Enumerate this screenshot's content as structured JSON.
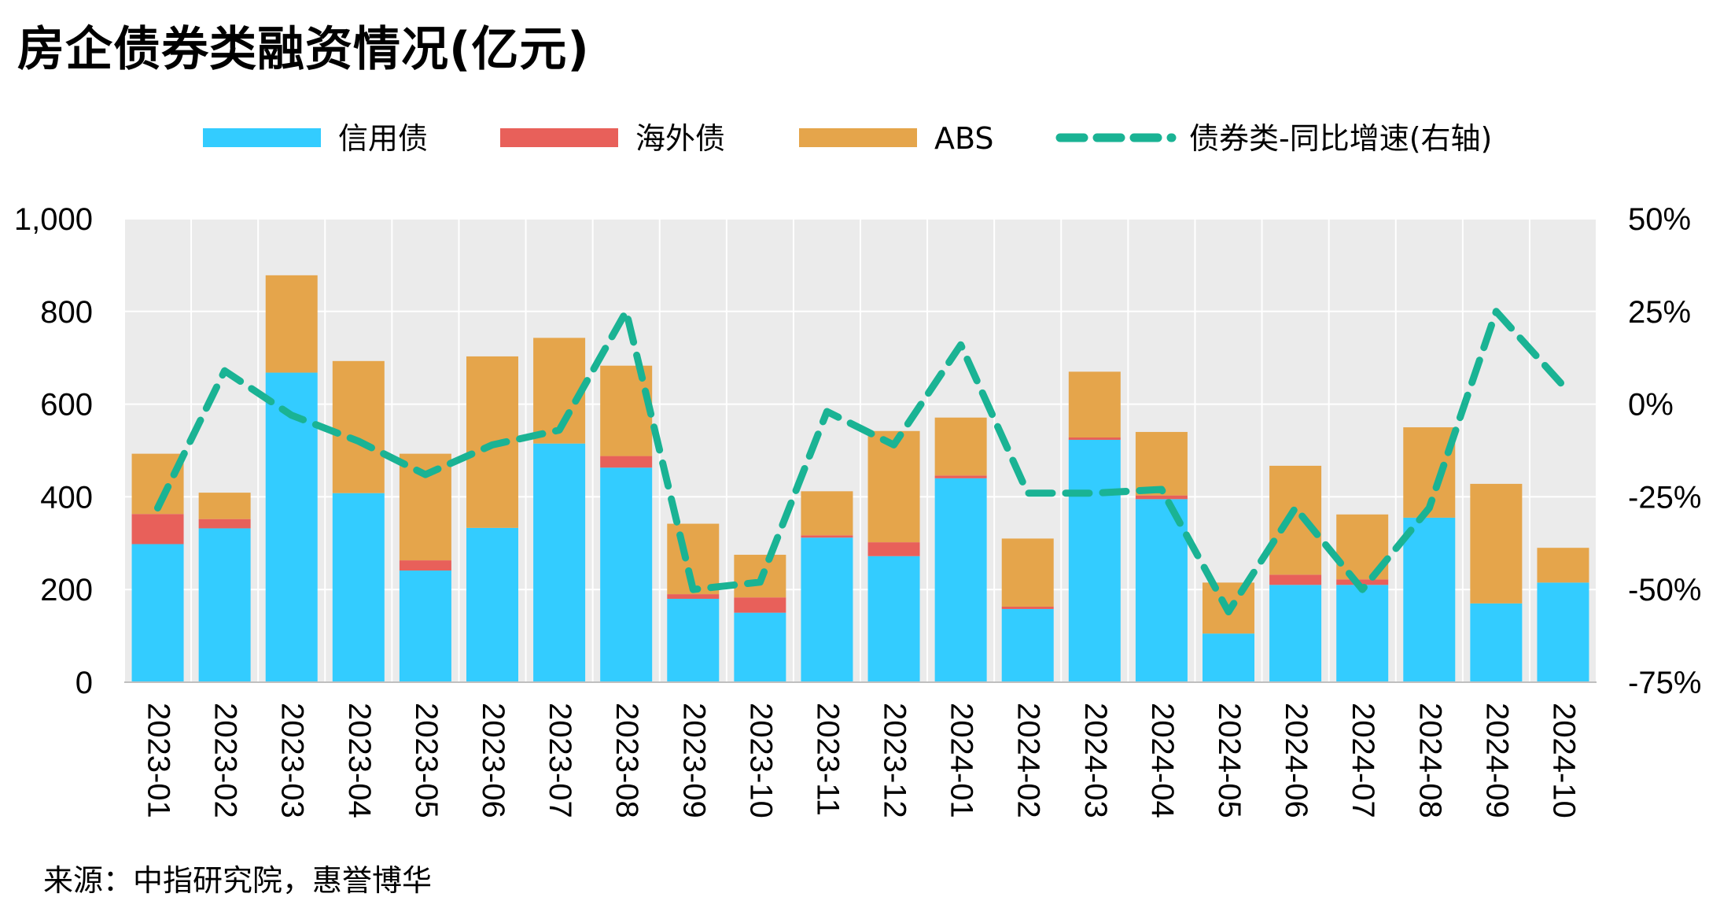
{
  "chart_data": {
    "type": "bar",
    "stacked": true,
    "title": "房企债券类融资情况(亿元)",
    "source": "来源：中指研究院，惠誉博华",
    "categories": [
      "2023-01",
      "2023-02",
      "2023-03",
      "2023-04",
      "2023-05",
      "2023-06",
      "2023-07",
      "2023-08",
      "2023-09",
      "2023-10",
      "2023-11",
      "2023-12",
      "2024-01",
      "2024-02",
      "2024-03",
      "2024-04",
      "2024-05",
      "2024-06",
      "2024-07",
      "2024-08",
      "2024-09",
      "2024-10"
    ],
    "series": [
      {
        "name": "信用债",
        "type": "bar",
        "axis": "left",
        "color": "#33CCFF",
        "values": [
          298,
          332,
          668,
          408,
          241,
          333,
          515,
          463,
          180,
          150,
          312,
          272,
          440,
          158,
          523,
          395,
          105,
          210,
          210,
          355,
          170,
          215
        ]
      },
      {
        "name": "海外债",
        "type": "bar",
        "axis": "left",
        "color": "#E8605A",
        "values": [
          65,
          20,
          0,
          0,
          22,
          0,
          0,
          25,
          10,
          33,
          5,
          30,
          6,
          5,
          5,
          8,
          0,
          22,
          12,
          0,
          0,
          0
        ]
      },
      {
        "name": "ABS",
        "type": "bar",
        "axis": "left",
        "color": "#E5A54B",
        "values": [
          130,
          57,
          210,
          285,
          230,
          370,
          228,
          195,
          152,
          92,
          95,
          240,
          125,
          147,
          142,
          137,
          110,
          235,
          140,
          195,
          258,
          75
        ]
      },
      {
        "name": "债券类-同比增速(右轴)",
        "type": "line",
        "axis": "right",
        "style": "dashed",
        "color": "#1AB394",
        "values": [
          -0.28,
          0.09,
          -0.03,
          -0.1,
          -0.19,
          -0.11,
          -0.07,
          0.25,
          -0.5,
          -0.48,
          -0.02,
          -0.11,
          0.16,
          -0.24,
          -0.24,
          -0.23,
          -0.56,
          -0.28,
          -0.5,
          -0.28,
          0.25,
          0.05
        ]
      }
    ],
    "ylim_left": [
      0,
      1000
    ],
    "yticks_left": [
      "0",
      "200",
      "400",
      "600",
      "800",
      "1,000"
    ],
    "ylim_right": [
      -0.75,
      0.5
    ],
    "yticks_right": [
      "-75%",
      "-50%",
      "-25%",
      "0%",
      "25%",
      "50%"
    ],
    "grid": true,
    "legend_position": "top"
  }
}
